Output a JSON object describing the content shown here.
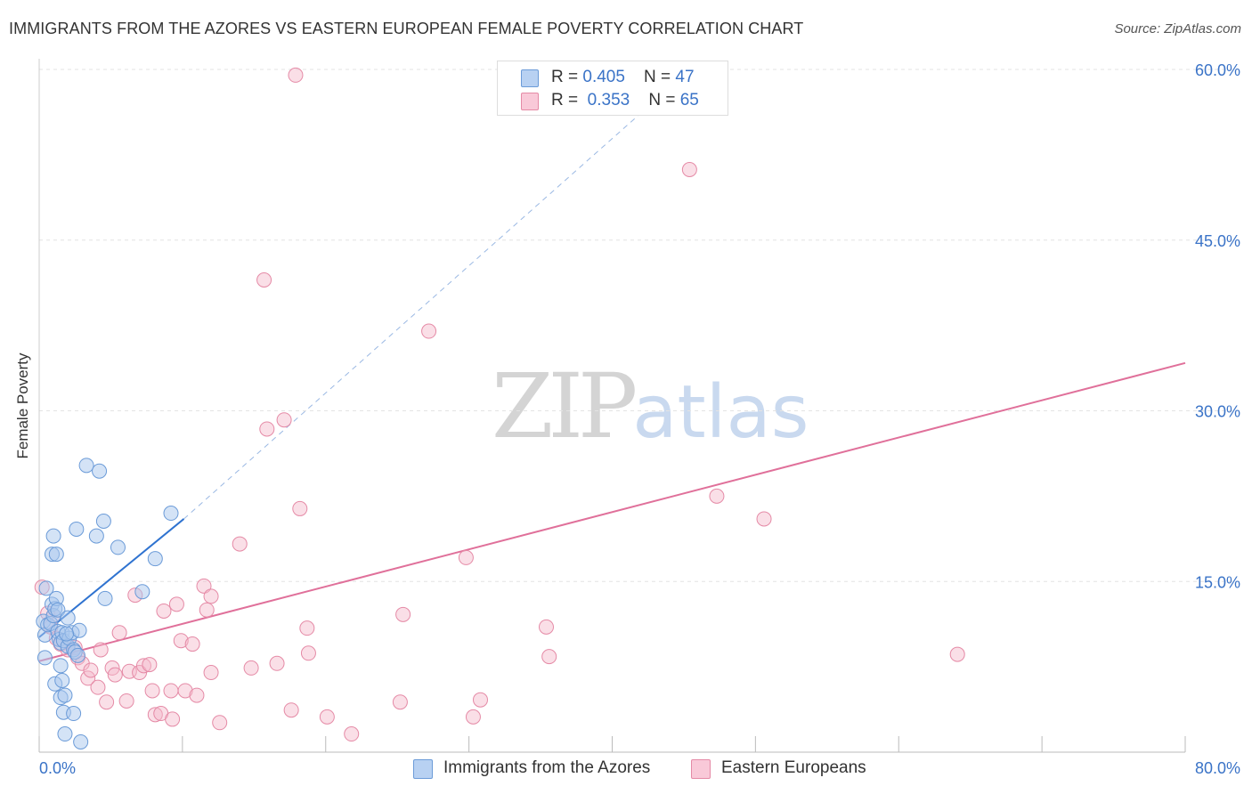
{
  "header": {
    "title": "IMMIGRANTS FROM THE AZORES VS EASTERN EUROPEAN FEMALE POVERTY CORRELATION CHART",
    "source": "Source: ZipAtlas.com"
  },
  "legend": {
    "series1": {
      "r_label": "R = ",
      "r_value": "0.405",
      "n_label": "N = ",
      "n_value": "47"
    },
    "series2": {
      "r_label": "R = ",
      "r_value": "0.353",
      "n_label": "N = ",
      "n_value": "65"
    }
  },
  "watermark": {
    "zip": "ZIP",
    "atlas": "atlas"
  },
  "colors": {
    "blue_fill": "#aac8ee",
    "blue_stroke": "#6b9bd8",
    "blue_line": "#2f73d0",
    "pink_fill": "#f5b8ca",
    "pink_stroke": "#e58aa6",
    "pink_line": "#e0709a",
    "axis_text": "#3a73c7",
    "grid": "#e3e3e3"
  },
  "chart_data": {
    "type": "scatter",
    "title": "IMMIGRANTS FROM THE AZORES VS EASTERN EUROPEAN FEMALE POVERTY CORRELATION CHART",
    "xlabel": "",
    "ylabel": "Female Poverty",
    "xlim": [
      0,
      80
    ],
    "ylim": [
      0,
      60
    ],
    "x_tick_labels": [
      "0.0%",
      "80.0%"
    ],
    "y_ticks": [
      15,
      30,
      45,
      60
    ],
    "y_tick_labels": [
      "15.0%",
      "30.0%",
      "45.0%",
      "60.0%"
    ],
    "series": [
      {
        "name": "Immigrants from the Azores",
        "color": "#aac8ee",
        "r": 0.405,
        "n": 47,
        "trend": {
          "x0": 0,
          "y0": 10.1,
          "x1": 10.1,
          "y1": 20.5,
          "dashed_to_x": 43.2,
          "dashed_to_y": 57.5
        },
        "points": [
          [
            0.3,
            11.5
          ],
          [
            0.4,
            10.3
          ],
          [
            0.4,
            8.3
          ],
          [
            0.5,
            14.4
          ],
          [
            0.6,
            11.2
          ],
          [
            0.8,
            11.3
          ],
          [
            0.9,
            17.4
          ],
          [
            0.9,
            13.0
          ],
          [
            1.0,
            19.0
          ],
          [
            1.0,
            12.0
          ],
          [
            1.1,
            12.6
          ],
          [
            1.1,
            6.0
          ],
          [
            1.2,
            17.4
          ],
          [
            1.2,
            13.5
          ],
          [
            1.3,
            10.6
          ],
          [
            1.3,
            12.5
          ],
          [
            1.4,
            9.9
          ],
          [
            1.5,
            9.6
          ],
          [
            1.5,
            7.6
          ],
          [
            1.5,
            4.8
          ],
          [
            1.6,
            6.3
          ],
          [
            1.6,
            10.5
          ],
          [
            1.7,
            9.8
          ],
          [
            1.7,
            3.5
          ],
          [
            1.8,
            5.0
          ],
          [
            1.8,
            1.6
          ],
          [
            2.0,
            11.8
          ],
          [
            2.0,
            9.3
          ],
          [
            2.1,
            10.0
          ],
          [
            2.4,
            3.4
          ],
          [
            2.3,
            10.5
          ],
          [
            2.4,
            9.0
          ],
          [
            2.5,
            8.8
          ],
          [
            2.6,
            19.6
          ],
          [
            2.8,
            10.7
          ],
          [
            2.9,
            0.9
          ],
          [
            3.3,
            25.2
          ],
          [
            4.0,
            19.0
          ],
          [
            4.2,
            24.7
          ],
          [
            4.5,
            20.3
          ],
          [
            4.6,
            13.5
          ],
          [
            5.5,
            18.0
          ],
          [
            7.2,
            14.1
          ],
          [
            8.1,
            17.0
          ],
          [
            9.2,
            21.0
          ],
          [
            2.7,
            8.5
          ],
          [
            1.9,
            10.4
          ]
        ]
      },
      {
        "name": "Eastern Europeans",
        "color": "#f5b8ca",
        "r": 0.353,
        "n": 65,
        "trend": {
          "x0": 0,
          "y0": 8.0,
          "x1": 80,
          "y1": 34.2
        },
        "points": [
          [
            0.2,
            14.5
          ],
          [
            0.6,
            12.2
          ],
          [
            0.8,
            11.0
          ],
          [
            1.0,
            12.0
          ],
          [
            1.2,
            10.0
          ],
          [
            1.5,
            9.5
          ],
          [
            2.0,
            9.0
          ],
          [
            2.5,
            9.2
          ],
          [
            2.7,
            8.3
          ],
          [
            3.0,
            7.8
          ],
          [
            3.4,
            6.5
          ],
          [
            3.6,
            7.2
          ],
          [
            4.1,
            5.7
          ],
          [
            4.3,
            9.0
          ],
          [
            4.7,
            4.4
          ],
          [
            5.1,
            7.4
          ],
          [
            5.3,
            6.8
          ],
          [
            5.6,
            10.5
          ],
          [
            6.1,
            4.5
          ],
          [
            6.3,
            7.1
          ],
          [
            6.7,
            13.8
          ],
          [
            7.0,
            7.0
          ],
          [
            7.3,
            7.6
          ],
          [
            7.7,
            7.7
          ],
          [
            7.9,
            5.4
          ],
          [
            8.1,
            3.3
          ],
          [
            8.5,
            3.4
          ],
          [
            8.7,
            12.4
          ],
          [
            9.3,
            2.9
          ],
          [
            9.6,
            13.0
          ],
          [
            9.9,
            9.8
          ],
          [
            10.2,
            5.4
          ],
          [
            10.7,
            9.5
          ],
          [
            11.0,
            5.0
          ],
          [
            11.5,
            14.6
          ],
          [
            11.7,
            12.5
          ],
          [
            12.0,
            13.7
          ],
          [
            12.6,
            2.6
          ],
          [
            14.0,
            18.3
          ],
          [
            14.8,
            7.4
          ],
          [
            15.7,
            41.5
          ],
          [
            15.9,
            28.4
          ],
          [
            16.6,
            7.8
          ],
          [
            17.1,
            29.2
          ],
          [
            17.6,
            3.7
          ],
          [
            17.9,
            59.5
          ],
          [
            18.2,
            21.4
          ],
          [
            18.7,
            10.9
          ],
          [
            18.8,
            8.7
          ],
          [
            20.1,
            3.1
          ],
          [
            21.8,
            1.6
          ],
          [
            25.2,
            4.4
          ],
          [
            25.4,
            12.1
          ],
          [
            27.2,
            37.0
          ],
          [
            30.3,
            3.1
          ],
          [
            30.8,
            4.6
          ],
          [
            29.8,
            17.1
          ],
          [
            35.4,
            11.0
          ],
          [
            35.6,
            8.4
          ],
          [
            45.4,
            51.2
          ],
          [
            47.3,
            22.5
          ],
          [
            50.6,
            20.5
          ],
          [
            64.1,
            8.6
          ],
          [
            9.2,
            5.4
          ],
          [
            12.0,
            7.0
          ]
        ]
      }
    ]
  }
}
